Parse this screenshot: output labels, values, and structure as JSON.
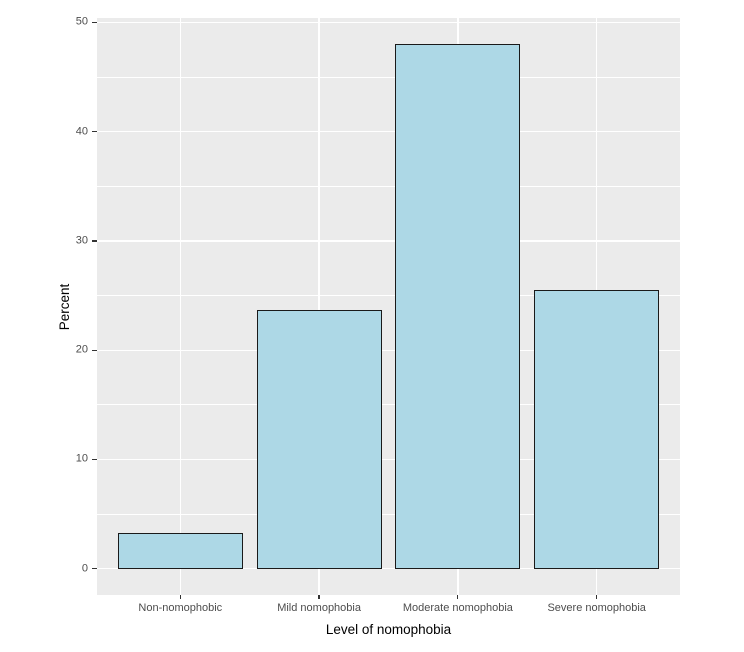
{
  "figure": {
    "background": "#FFFFFF",
    "panel_background": "#EBEBEB",
    "grid_color": "#FFFFFF",
    "bar_fill": "#ADD8E6",
    "bar_stroke": "#1A1A1A",
    "tick_color": "#333333",
    "tick_label_color": "#4D4D4D",
    "axis_title_color": "#000000"
  },
  "chart_data": {
    "type": "bar",
    "title": "",
    "xlabel": "Level of nomophobia",
    "ylabel": "Percent",
    "categories": [
      "Non-nomophobic",
      "Mild nomophobia",
      "Moderate nomophobia",
      "Severe nomophobia"
    ],
    "values": [
      3.3,
      23.7,
      48.0,
      25.5
    ],
    "ylim": [
      0,
      50
    ],
    "y_ticks_major": [
      0,
      10,
      20,
      30,
      40,
      50
    ],
    "y_ticks_minor": [
      5,
      15,
      25,
      35,
      45
    ],
    "grid": true,
    "legend_position": "none",
    "bar_width_fraction": 0.9,
    "category_edge_expansion": 0.6,
    "y_expansion_mult": 0.05
  }
}
